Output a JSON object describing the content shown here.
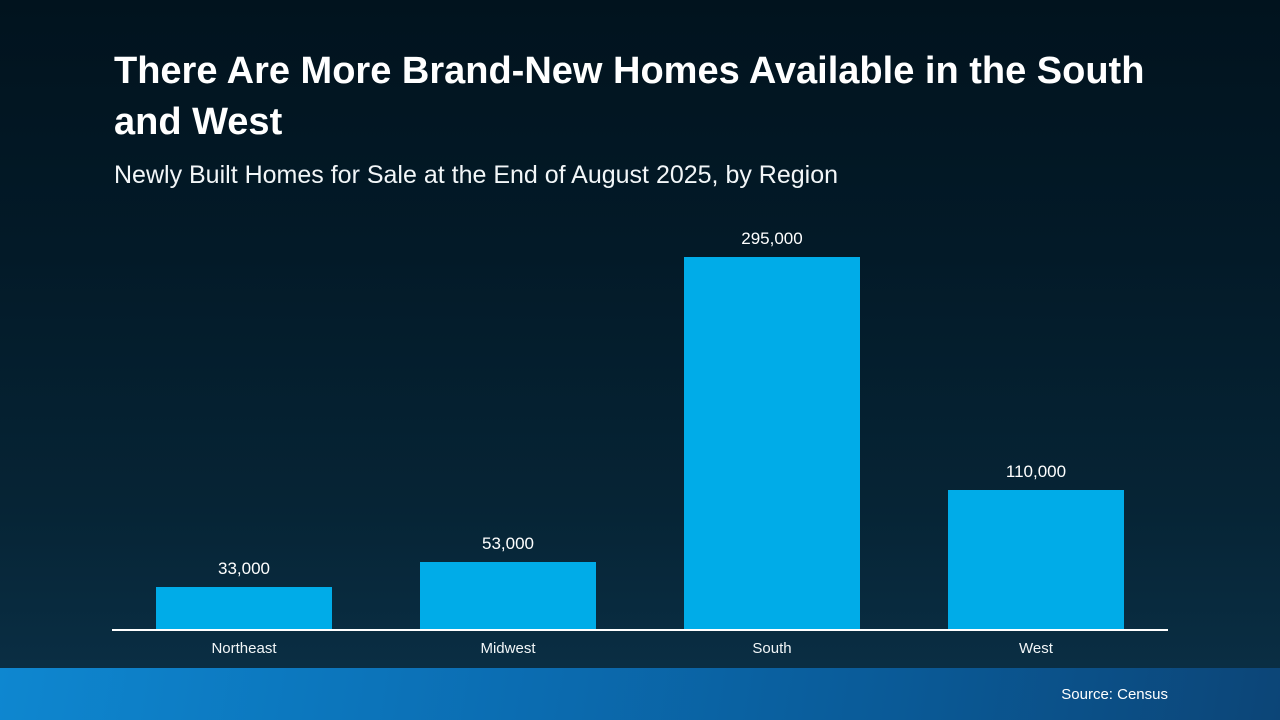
{
  "accent_color": "#00ace8",
  "background_color": "#031a28",
  "header": {
    "title": "There Are More Brand-New Homes Available in the South and West",
    "subtitle": "Newly Built Homes for Sale at the End of August 2025, by Region"
  },
  "footer": {
    "source": "Source: Census"
  },
  "chart_data": {
    "type": "bar",
    "title": "There Are More Brand-New Homes Available in the South and West",
    "subtitle": "Newly Built Homes for Sale at the End of August 2025, by Region",
    "categories": [
      "Northeast",
      "Midwest",
      "South",
      "West"
    ],
    "values": [
      33000,
      53000,
      295000,
      110000
    ],
    "value_labels": [
      "33,000",
      "53,000",
      "295,000",
      "110,000"
    ],
    "xlabel": "",
    "ylabel": "",
    "ylim": [
      0,
      320000
    ],
    "bar_color": "#00ace8",
    "grid": false,
    "legend": false,
    "value_labels_position": "above-bars",
    "axis_line_color": "#ffffff"
  }
}
